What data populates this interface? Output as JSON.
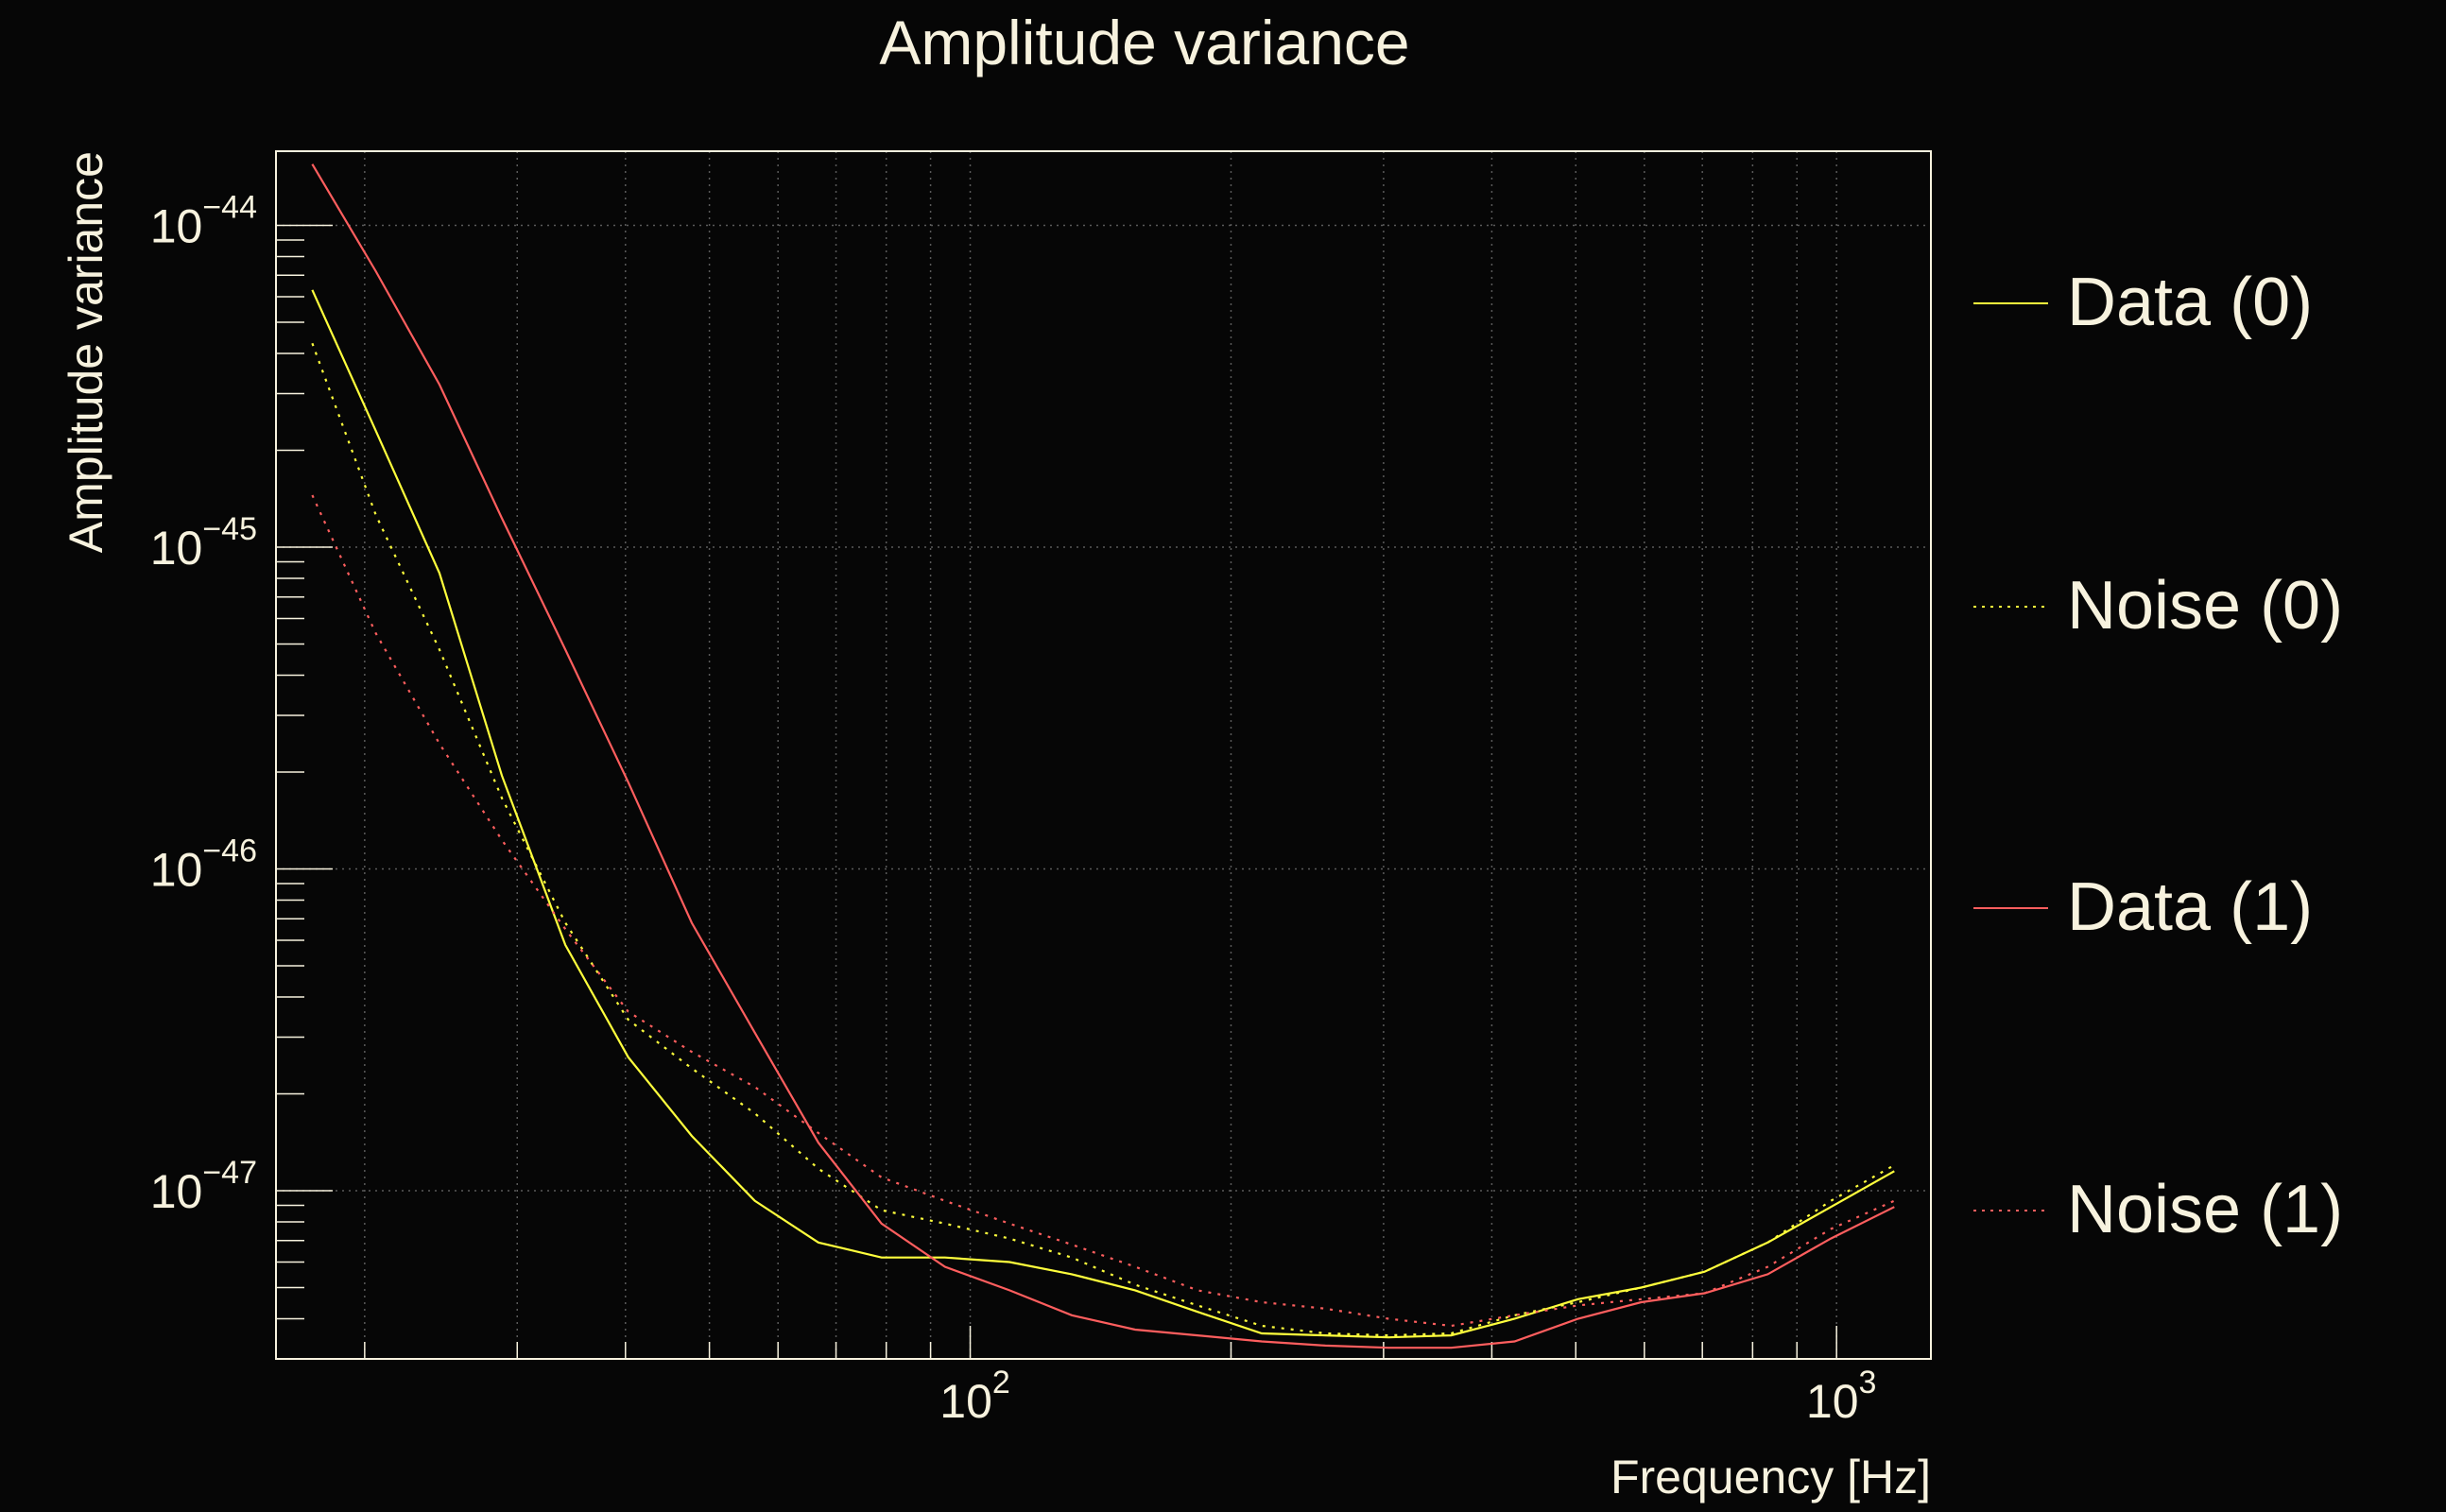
{
  "chart_data": {
    "type": "line",
    "title": "Amplitude variance",
    "xlabel": "Frequency [Hz]",
    "ylabel": "Amplitude variance",
    "xscale": "log",
    "yscale": "log",
    "xlim": [
      15.8,
      1285
    ],
    "ylim": [
      3e-48,
      1.7e-44
    ],
    "grid": true,
    "legend_placement": "right-outside",
    "x_ticks": [
      {
        "value": 100,
        "base": "10",
        "exp": "2"
      },
      {
        "value": 1000,
        "base": "10",
        "exp": "3"
      }
    ],
    "y_ticks": [
      {
        "value": 1e-44,
        "base": "10",
        "exp": "−44"
      },
      {
        "value": 1e-45,
        "base": "10",
        "exp": "−45"
      },
      {
        "value": 1e-46,
        "base": "10",
        "exp": "−46"
      },
      {
        "value": 1e-47,
        "base": "10",
        "exp": "−47"
      }
    ],
    "x": [
      17.4,
      20.6,
      24.4,
      28.8,
      34.1,
      40.3,
      47.7,
      56.4,
      66.8,
      79.0,
      93.5,
      111,
      131,
      155,
      183,
      217,
      257,
      304,
      359,
      425,
      503,
      595,
      704,
      833,
      985,
      1166
    ],
    "series": [
      {
        "name": "Data (0)",
        "color": "#ffff3c",
        "style": "solid",
        "values": [
          6.3e-45,
          2.3e-45,
          8.3e-46,
          1.95e-46,
          5.8e-47,
          2.6e-47,
          1.48e-47,
          9.3e-48,
          6.9e-48,
          6.2e-48,
          6.2e-48,
          6e-48,
          5.5e-48,
          4.9e-48,
          4.2e-48,
          3.6e-48,
          3.55e-48,
          3.5e-48,
          3.55e-48,
          4e-48,
          4.6e-48,
          5e-48,
          5.6e-48,
          6.9e-48,
          8.9e-48,
          1.15e-47
        ]
      },
      {
        "name": "Noise (0)",
        "color": "#ffff3c",
        "style": "dotted",
        "values": [
          4.3e-45,
          1.26e-45,
          4.8e-46,
          1.66e-46,
          6.8e-47,
          3.4e-47,
          2.4e-47,
          1.74e-47,
          1.17e-47,
          8.7e-48,
          7.9e-48,
          7.1e-48,
          6.2e-48,
          5.1e-48,
          4.4e-48,
          3.8e-48,
          3.6e-48,
          3.55e-48,
          3.6e-48,
          4.1e-48,
          4.5e-48,
          5e-48,
          5.6e-48,
          6.9e-48,
          9.3e-48,
          1.2e-47
        ]
      },
      {
        "name": "Data (1)",
        "color": "#ff5e5e",
        "style": "solid",
        "values": [
          1.55e-44,
          7.2e-45,
          3.2e-45,
          1.23e-45,
          4.8e-46,
          1.86e-46,
          6.8e-47,
          3.1e-47,
          1.41e-47,
          7.9e-48,
          5.8e-48,
          4.9e-48,
          4.1e-48,
          3.7e-48,
          3.55e-48,
          3.4e-48,
          3.3e-48,
          3.25e-48,
          3.25e-48,
          3.4e-48,
          4e-48,
          4.5e-48,
          4.8e-48,
          5.5e-48,
          7.1e-48,
          8.9e-48
        ]
      },
      {
        "name": "Noise (1)",
        "color": "#ff5e5e",
        "style": "dotted",
        "values": [
          1.45e-45,
          5.4e-46,
          2.45e-46,
          1.23e-46,
          6.5e-47,
          3.6e-47,
          2.7e-47,
          2.1e-47,
          1.51e-47,
          1.1e-47,
          9.3e-48,
          7.9e-48,
          6.8e-48,
          5.8e-48,
          4.9e-48,
          4.5e-48,
          4.3e-48,
          4e-48,
          3.8e-48,
          4.1e-48,
          4.4e-48,
          4.6e-48,
          4.8e-48,
          5.8e-48,
          7.6e-48,
          9.3e-48
        ]
      }
    ]
  }
}
